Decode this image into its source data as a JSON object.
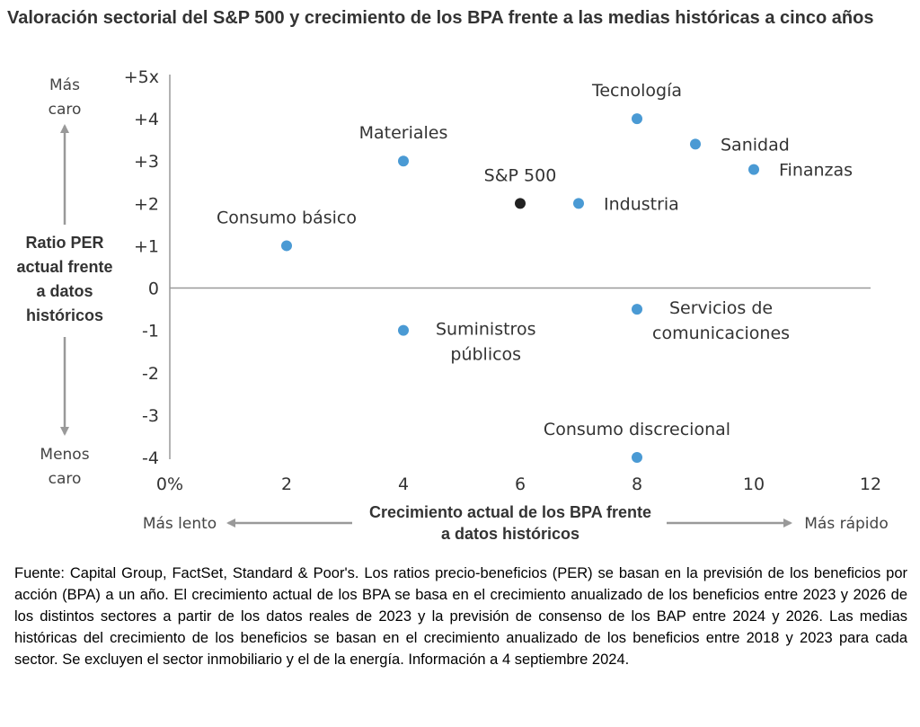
{
  "title": "Valoración sectorial del S&P 500 y crecimiento de los BPA frente a las medias históricas a cinco años",
  "footer": "Fuente: Capital Group, FactSet, Standard & Poor's. Los ratios precio-beneficios (PER) se basan en la previsión de los beneficios por acción (BPA) a un año. El crecimiento actual de los BPA se basa en el crecimiento anualizado de los beneficios entre 2023 y 2026 de los distintos sectores a partir de los datos reales de 2023 y la previsión de consenso de los BAP entre 2024 y 2026. Las medias históricas del crecimiento de los beneficios se basan en el crecimiento anualizado de los beneficios entre 2018 y 2023 para cada sector. Se excluyen el sector inmobiliario y el de la energía. Información a 4 septiembre 2024.",
  "chart_data": {
    "type": "scatter",
    "title": "Valoración sectorial del S&P 500 y crecimiento de los BPA frente a las medias históricas a cinco años",
    "xlabel": [
      "Crecimiento actual de los BPA frente",
      "a datos históricos"
    ],
    "ylabel": [
      "Ratio PER",
      "actual frente",
      "a datos",
      "históricos"
    ],
    "xlim": [
      0,
      12
    ],
    "ylim": [
      -4,
      5
    ],
    "x_ticks": [
      0,
      2,
      4,
      6,
      8,
      10,
      12
    ],
    "x_tick_labels": [
      "0%",
      "2",
      "4",
      "6",
      "8",
      "10",
      "12"
    ],
    "y_ticks": [
      5,
      4,
      3,
      2,
      1,
      0,
      -1,
      -2,
      -3,
      -4
    ],
    "y_tick_labels": [
      "+5x",
      "+4",
      "+3",
      "+2",
      "+1",
      "0",
      "-1",
      "-2",
      "-3",
      "-4"
    ],
    "y_top_note": [
      "Más",
      "caro"
    ],
    "y_bottom_note": [
      "Menos",
      "caro"
    ],
    "x_left_note": "Más lento",
    "x_right_note": "Más rápido",
    "grid": false,
    "colors": {
      "sector": "#4a9ad4",
      "index": "#222222",
      "arrow": "#999999",
      "axis": "#999999"
    },
    "points": [
      {
        "name": [
          "Tecnología"
        ],
        "x": 8,
        "y": 4.0,
        "kind": "sector",
        "label_pos": "above"
      },
      {
        "name": [
          "Sanidad"
        ],
        "x": 9,
        "y": 3.4,
        "kind": "sector",
        "label_pos": "right"
      },
      {
        "name": [
          "Finanzas"
        ],
        "x": 10,
        "y": 2.8,
        "kind": "sector",
        "label_pos": "right"
      },
      {
        "name": [
          "Materiales"
        ],
        "x": 4,
        "y": 3.0,
        "kind": "sector",
        "label_pos": "above"
      },
      {
        "name": [
          "S&P 500"
        ],
        "x": 6,
        "y": 2.0,
        "kind": "index",
        "label_pos": "above"
      },
      {
        "name": [
          "Industria"
        ],
        "x": 7,
        "y": 2.0,
        "kind": "sector",
        "label_pos": "right"
      },
      {
        "name": [
          "Consumo básico"
        ],
        "x": 2,
        "y": 1.0,
        "kind": "sector",
        "label_pos": "above"
      },
      {
        "name": [
          "Servicios de",
          "comunicaciones"
        ],
        "x": 8,
        "y": -0.5,
        "kind": "sector",
        "label_pos": "right"
      },
      {
        "name": [
          "Suministros",
          "públicos"
        ],
        "x": 4,
        "y": -1.0,
        "kind": "sector",
        "label_pos": "right"
      },
      {
        "name": [
          "Consumo discrecional"
        ],
        "x": 8,
        "y": -4.0,
        "kind": "sector",
        "label_pos": "above"
      }
    ]
  }
}
